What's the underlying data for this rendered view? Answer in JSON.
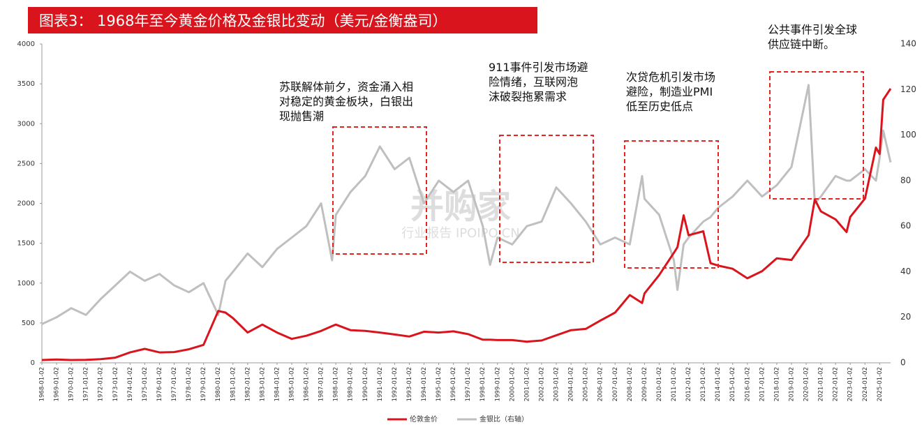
{
  "chart_data": {
    "type": "line",
    "title": "图表3： 1968年至今黄金价格及金银比变动（美元/金衡盎司）",
    "x": [
      "1968-01-02",
      "1969-01-02",
      "1970-01-02",
      "1971-01-02",
      "1972-01-02",
      "1973-01-02",
      "1974-01-02",
      "1975-01-02",
      "1976-01-02",
      "1977-01-02",
      "1978-01-02",
      "1979-01-02",
      "1980-01-02",
      "1980-07-01",
      "1981-01-02",
      "1982-01-02",
      "1983-01-02",
      "1984-01-02",
      "1985-01-02",
      "1986-01-02",
      "1987-01-02",
      "1987-10-01",
      "1988-01-02",
      "1989-01-02",
      "1990-01-02",
      "1991-01-02",
      "1992-01-02",
      "1993-01-02",
      "1994-01-02",
      "1995-01-02",
      "1996-01-02",
      "1997-01-02",
      "1998-01-02",
      "1998-07-01",
      "1999-01-02",
      "2000-01-02",
      "2001-01-02",
      "2002-01-02",
      "2003-01-02",
      "2004-01-02",
      "2005-01-02",
      "2006-01-02",
      "2007-01-02",
      "2008-01-02",
      "2008-11-03",
      "2009-01-02",
      "2010-01-02",
      "2011-01-02",
      "2011-04-01",
      "2011-09-01",
      "2012-01-02",
      "2013-01-02",
      "2013-07-01",
      "2014-01-02",
      "2015-01-02",
      "2016-01-02",
      "2017-01-02",
      "2018-01-02",
      "2019-01-02",
      "2020-03-02",
      "2020-08-03",
      "2021-01-02",
      "2022-01-02",
      "2022-10-03",
      "2023-01-02",
      "2024-01-02",
      "2024-10-01",
      "2025-01-02",
      "2025-04-01",
      "2025-10-01"
    ],
    "series": [
      {
        "name": "伦敦金价",
        "color": "#d9141c",
        "values": [
          35,
          42,
          35,
          37,
          46,
          65,
          130,
          175,
          130,
          135,
          170,
          225,
          650,
          630,
          560,
          380,
          480,
          380,
          300,
          340,
          400,
          460,
          480,
          410,
          400,
          380,
          355,
          330,
          390,
          380,
          395,
          360,
          290,
          290,
          285,
          285,
          265,
          280,
          345,
          410,
          425,
          530,
          630,
          850,
          750,
          870,
          1100,
          1380,
          1450,
          1850,
          1600,
          1650,
          1250,
          1220,
          1180,
          1060,
          1150,
          1310,
          1290,
          1600,
          2050,
          1900,
          1800,
          1640,
          1830,
          2060,
          2700,
          2620,
          3300,
          3440
        ]
      },
      {
        "name": "金银比（右轴）",
        "color": "#bfbfbf",
        "axis": "y2",
        "values": [
          17,
          20,
          24,
          21,
          28,
          34,
          40,
          36,
          39,
          34,
          31,
          35,
          21,
          36,
          40,
          48,
          42,
          50,
          55,
          60,
          70,
          45,
          65,
          75,
          82,
          95,
          85,
          90,
          70,
          80,
          75,
          80,
          60,
          43,
          55,
          52,
          60,
          62,
          77,
          70,
          62,
          52,
          55,
          52,
          82,
          72,
          65,
          45,
          32,
          52,
          55,
          62,
          64,
          68,
          73,
          80,
          73,
          78,
          86,
          122,
          70,
          73,
          82,
          80,
          80,
          85,
          80,
          90,
          102,
          88
        ]
      }
    ],
    "xlim": [
      "1968-01-02",
      "2025-10-01"
    ],
    "xticks": [
      "1968-01-02",
      "1969-01-02",
      "1970-01-02",
      "1971-01-02",
      "1972-01-02",
      "1973-01-02",
      "1974-01-02",
      "1975-01-02",
      "1976-01-02",
      "1977-01-02",
      "1978-01-02",
      "1979-01-02",
      "1980-01-02",
      "1981-01-02",
      "1982-01-02",
      "1983-01-02",
      "1984-01-02",
      "1985-01-02",
      "1986-01-02",
      "1987-01-02",
      "1988-01-02",
      "1989-01-02",
      "1990-01-02",
      "1991-01-02",
      "1992-01-02",
      "1993-01-02",
      "1994-01-02",
      "1995-01-02",
      "1996-01-02",
      "1997-01-02",
      "1998-01-02",
      "1999-01-02",
      "2000-01-02",
      "2001-01-02",
      "2002-01-02",
      "2003-01-02",
      "2004-01-02",
      "2005-01-02",
      "2006-01-02",
      "2007-01-02",
      "2008-01-02",
      "2009-01-02",
      "2010-01-02",
      "2011-01-02",
      "2012-01-02",
      "2013-01-02",
      "2014-01-02",
      "2015-01-02",
      "2016-01-02",
      "2017-01-02",
      "2018-01-02",
      "2019-01-02",
      "2020-01-02",
      "2021-01-02",
      "2022-01-02",
      "2023-01-02",
      "2024-01-02",
      "2025-01-02"
    ],
    "ylim": [
      0,
      4000
    ],
    "yticks": [
      0,
      500,
      1000,
      1500,
      2000,
      2500,
      3000,
      3500,
      4000
    ],
    "y2lim": [
      0,
      140
    ],
    "y2ticks": [
      0,
      20,
      40,
      60,
      80,
      100,
      120,
      140
    ],
    "annotations": [
      "苏联解体前夕，资金涌入相\n对稳定的黄金板块，白银出\n现抛售潮",
      "911事件引发市场避\n险情绪，互联网泡\n沫破裂拖累需求",
      "次贷危机引发市场\n避险，制造业PMI\n低至历史低点",
      "公共事件引发全球\n供应链中断。"
    ],
    "watermark": [
      "并购家",
      "行业报告 IPOIPO.CN"
    ]
  }
}
